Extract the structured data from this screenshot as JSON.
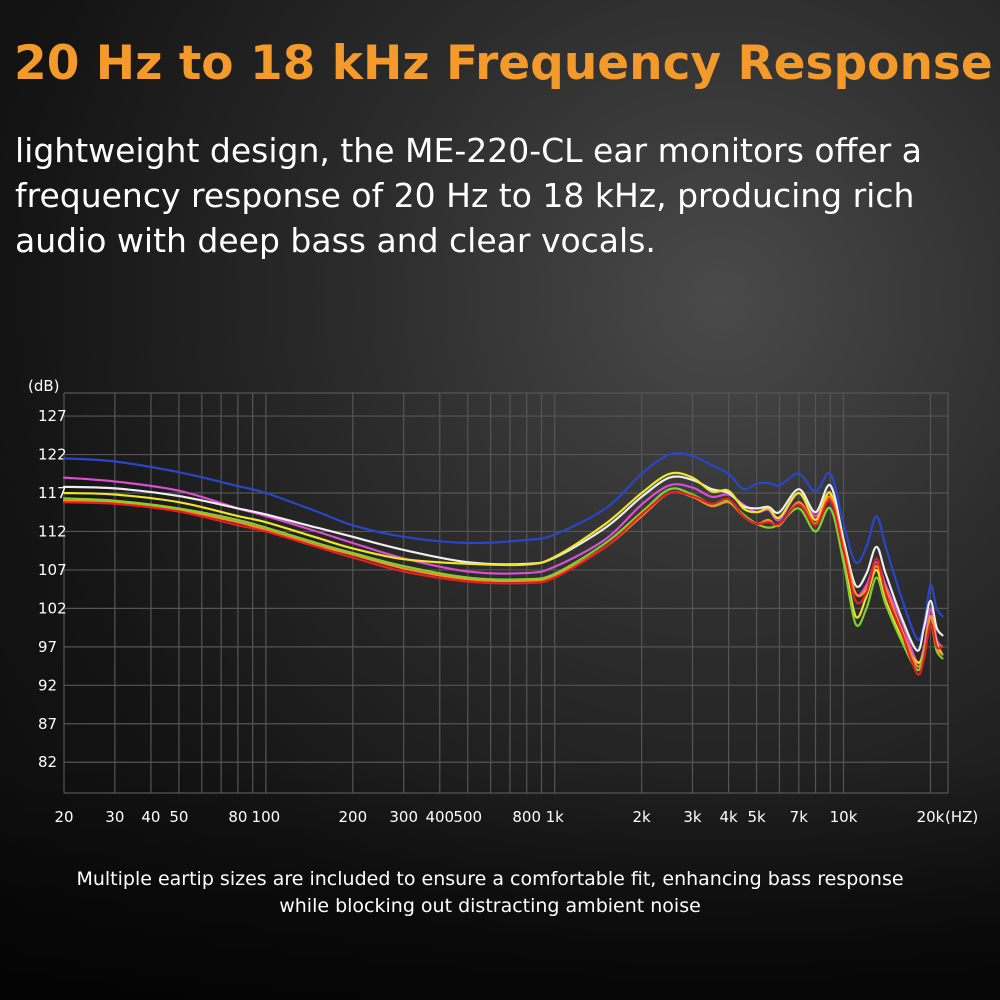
{
  "headline": "20 Hz to 18 kHz Frequency Response",
  "intro": "lightweight design, the ME-220-CL ear monitors offer a frequency response of 20 Hz to 18 kHz, producing rich audio with deep bass and clear vocals.",
  "caption": "Multiple eartip sizes are included to ensure a comfortable fit, enhancing bass response while blocking out distracting ambient noise",
  "colors": {
    "headline": "#f39a2a",
    "grid": "#555555",
    "text": "#ffffff"
  },
  "chart_data": {
    "type": "line",
    "title": "",
    "xlabel": "(HZ)",
    "ylabel": "(dB)",
    "xscale": "log",
    "xlim": [
      20,
      23000
    ],
    "ylim": [
      78,
      130
    ],
    "grid": true,
    "x_ticks": [
      {
        "v": 20,
        "label": "20"
      },
      {
        "v": 30,
        "label": "30"
      },
      {
        "v": 40,
        "label": "40"
      },
      {
        "v": 50,
        "label": "50"
      },
      {
        "v": 80,
        "label": "80"
      },
      {
        "v": 100,
        "label": "100"
      },
      {
        "v": 200,
        "label": "200"
      },
      {
        "v": 300,
        "label": "300"
      },
      {
        "v": 400,
        "label": "400"
      },
      {
        "v": 500,
        "label": "500"
      },
      {
        "v": 800,
        "label": "800"
      },
      {
        "v": 1000,
        "label": "1k"
      },
      {
        "v": 2000,
        "label": "2k"
      },
      {
        "v": 3000,
        "label": "3k"
      },
      {
        "v": 4000,
        "label": "4k"
      },
      {
        "v": 5000,
        "label": "5k"
      },
      {
        "v": 7000,
        "label": "7k"
      },
      {
        "v": 10000,
        "label": "10k"
      },
      {
        "v": 20000,
        "label": "20k"
      }
    ],
    "y_ticks": [
      127,
      122,
      117,
      112,
      107,
      102,
      97,
      92,
      87,
      82
    ],
    "x": [
      20,
      30,
      50,
      80,
      100,
      150,
      200,
      300,
      500,
      800,
      1000,
      1500,
      2000,
      2500,
      3000,
      3500,
      4000,
      4500,
      5000,
      5500,
      6000,
      7000,
      8000,
      9000,
      10000,
      11000,
      12000,
      13000,
      14000,
      16000,
      18000,
      19000,
      20000,
      21000,
      22000
    ],
    "series": [
      {
        "color": "#2a46c8",
        "values": [
          121.5,
          121.1,
          119.7,
          117.9,
          117.0,
          114.6,
          112.8,
          111.3,
          110.5,
          110.9,
          111.6,
          115.0,
          119.5,
          122.0,
          121.8,
          120.6,
          119.5,
          117.5,
          118.2,
          118.3,
          118.0,
          119.5,
          117.2,
          119.5,
          113.0,
          108.0,
          110.0,
          114.0,
          110.0,
          103.0,
          98.0,
          100.0,
          105.0,
          102.0,
          101.0
        ]
      },
      {
        "color": "#d94fd0",
        "values": [
          119.0,
          118.5,
          117.3,
          115.0,
          114.0,
          112.0,
          110.5,
          108.5,
          106.8,
          106.6,
          107.4,
          111.0,
          115.5,
          118.0,
          117.7,
          116.5,
          116.8,
          115.5,
          114.5,
          114.8,
          113.5,
          117.0,
          114.0,
          117.0,
          110.0,
          104.0,
          105.0,
          108.0,
          105.0,
          100.0,
          95.0,
          97.0,
          102.0,
          98.0,
          97.0
        ]
      },
      {
        "color": "#eeeeee",
        "values": [
          117.8,
          117.6,
          116.6,
          115.0,
          114.2,
          112.5,
          111.3,
          109.6,
          108.0,
          107.8,
          108.6,
          112.5,
          116.5,
          119.0,
          118.7,
          117.5,
          117.0,
          115.3,
          115.0,
          115.2,
          114.5,
          117.5,
          114.5,
          118.0,
          111.0,
          105.0,
          106.5,
          110.0,
          106.5,
          100.5,
          96.5,
          99.5,
          103.0,
          99.5,
          98.5
        ]
      },
      {
        "color": "#f0e52a",
        "values": [
          117.0,
          116.8,
          115.8,
          114.0,
          113.2,
          111.2,
          109.8,
          108.4,
          107.8,
          107.7,
          108.7,
          113.0,
          117.0,
          119.5,
          119.0,
          117.2,
          117.3,
          115.0,
          114.5,
          115.0,
          113.8,
          117.0,
          113.5,
          117.0,
          109.0,
          101.0,
          103.5,
          107.0,
          103.0,
          98.0,
          95.0,
          96.5,
          101.0,
          97.5,
          96.0
        ]
      },
      {
        "color": "#ff8c2a",
        "values": [
          116.0,
          115.8,
          114.8,
          113.2,
          112.2,
          110.2,
          109.0,
          107.2,
          105.8,
          105.6,
          106.3,
          110.0,
          114.0,
          117.0,
          116.5,
          115.3,
          115.8,
          114.0,
          113.0,
          113.5,
          112.8,
          115.8,
          113.0,
          116.5,
          110.0,
          104.0,
          104.5,
          107.5,
          104.5,
          99.0,
          94.5,
          96.5,
          101.0,
          97.0,
          96.0
        ]
      },
      {
        "color": "#80d030",
        "values": [
          116.3,
          116.0,
          115.0,
          113.5,
          112.5,
          110.5,
          109.2,
          107.5,
          106.0,
          105.8,
          106.5,
          110.5,
          114.5,
          117.5,
          116.8,
          115.5,
          116.0,
          114.2,
          113.0,
          112.5,
          113.0,
          115.0,
          112.0,
          115.0,
          108.0,
          100.0,
          102.0,
          106.0,
          102.5,
          97.5,
          94.0,
          96.0,
          100.0,
          96.5,
          95.5
        ]
      },
      {
        "color": "#e52020",
        "values": [
          115.8,
          115.6,
          114.6,
          112.8,
          112.0,
          110.0,
          108.6,
          106.8,
          105.5,
          105.3,
          106.0,
          110.0,
          114.2,
          117.0,
          116.6,
          115.6,
          116.2,
          114.0,
          113.0,
          113.2,
          113.0,
          115.5,
          112.8,
          116.0,
          109.5,
          103.0,
          104.0,
          108.5,
          104.0,
          98.5,
          93.5,
          95.5,
          100.0,
          97.0,
          97.0
        ]
      }
    ]
  }
}
